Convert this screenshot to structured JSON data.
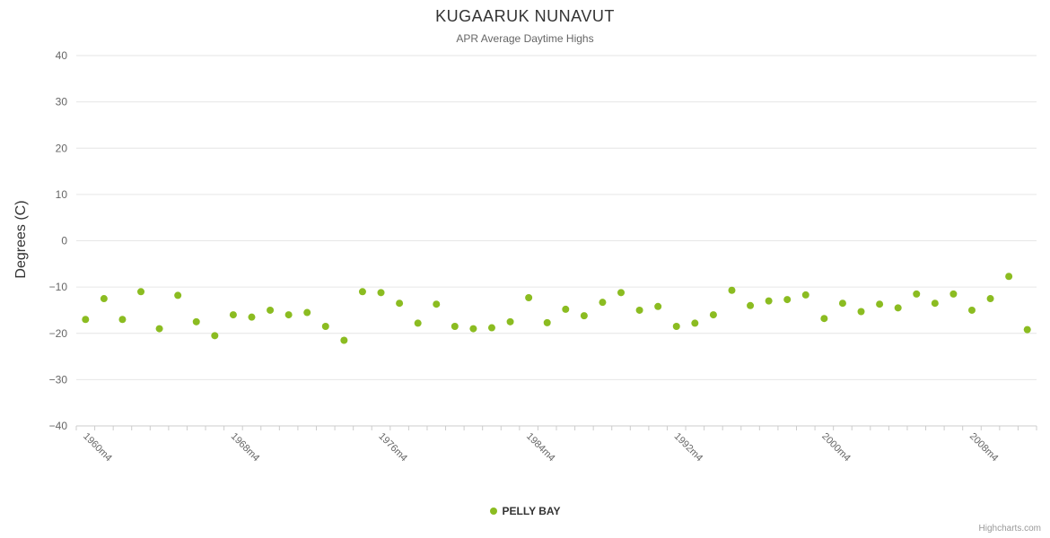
{
  "chart_data": {
    "type": "scatter",
    "title": "KUGAARUK NUNAVUT",
    "subtitle": "APR Average Daytime Highs",
    "ylabel": "Degrees (C)",
    "ylim": [
      -40,
      40
    ],
    "y_tick_interval": 10,
    "x_tick_label_interval": 8,
    "grid": true,
    "legend_position": "bottom-center",
    "colors": {
      "series_green": "#8bbc21",
      "gridline": "#e6e6e6",
      "axis_line": "#cccccc",
      "tick": "#cccccc"
    },
    "categories": [
      "1960m4",
      "1961m4",
      "1962m4",
      "1963m4",
      "1964m4",
      "1965m4",
      "1966m4",
      "1967m4",
      "1968m4",
      "1969m4",
      "1970m4",
      "1971m4",
      "1972m4",
      "1973m4",
      "1974m4",
      "1975m4",
      "1976m4",
      "1977m4",
      "1978m4",
      "1979m4",
      "1980m4",
      "1981m4",
      "1982m4",
      "1983m4",
      "1984m4",
      "1985m4",
      "1986m4",
      "1987m4",
      "1988m4",
      "1989m4",
      "1990m4",
      "1991m4",
      "1992m4",
      "1993m4",
      "1994m4",
      "1995m4",
      "1996m4",
      "1997m4",
      "1998m4",
      "1999m4",
      "2000m4",
      "2001m4",
      "2002m4",
      "2003m4",
      "2004m4",
      "2005m4",
      "2006m4",
      "2007m4",
      "2008m4",
      "2009m4",
      "2010m4",
      "2011m4"
    ],
    "series": [
      {
        "name": "PELLY BAY",
        "color": "#8bbc21",
        "values": [
          -17,
          -12.5,
          -17,
          -11,
          -19,
          -11.8,
          -17.5,
          -20.5,
          -16,
          -16.5,
          -15,
          -16,
          -15.5,
          -18.5,
          -21.5,
          -11,
          -11.2,
          -13.5,
          -17.8,
          -13.7,
          -18.5,
          -19,
          -18.8,
          -17.5,
          -12.3,
          -17.7,
          -14.8,
          -16.2,
          -13.3,
          -11.2,
          -15,
          -14.2,
          -18.5,
          -17.8,
          -16,
          -10.7,
          -14,
          -13,
          -12.7,
          -11.7,
          -16.8,
          -13.5,
          -15.3,
          -13.7,
          -14.5,
          -11.5,
          -13.5,
          -11.5,
          -15,
          -12.5,
          -7.7,
          -19.2
        ]
      }
    ],
    "credits": "Highcharts.com"
  }
}
